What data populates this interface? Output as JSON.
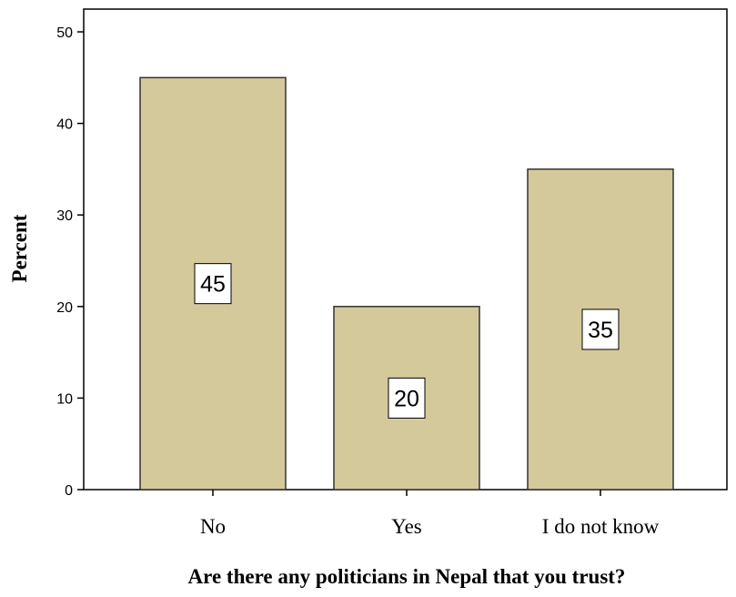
{
  "chart_data": {
    "type": "bar",
    "categories": [
      "No",
      "Yes",
      "I do not know"
    ],
    "values": [
      45,
      20,
      35
    ],
    "data_labels": [
      "45",
      "20",
      "35"
    ],
    "xlabel": "Are there any politicians in Nepal that you trust?",
    "ylabel": "Percent",
    "ylim": [
      0,
      50
    ],
    "yticks": [
      "0",
      "10",
      "20",
      "30",
      "40",
      "50"
    ],
    "grid": false,
    "legend": "none",
    "colors": {
      "bar_fill": "#d4c99b",
      "bar_stroke": "#333333",
      "axis": "#000000"
    }
  }
}
